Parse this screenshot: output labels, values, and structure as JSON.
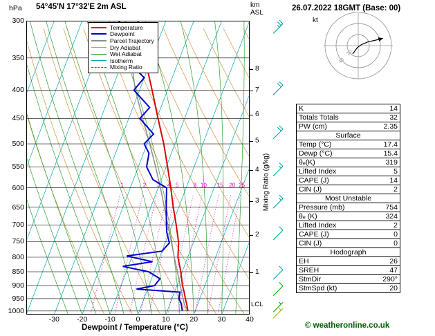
{
  "header": {
    "station_title": "54°45'N 17°32'E 2m ASL",
    "pressure_unit": "hPa",
    "altitude_unit_line1": "km",
    "altitude_unit_line2": "ASL",
    "date_title": "26.07.2022 18GMT (Base: 00)"
  },
  "legend": {
    "items": [
      {
        "label": "Temperature",
        "color": "#dd0000",
        "style": "solid",
        "weight": 2
      },
      {
        "label": "Dewpoint",
        "color": "#0000cc",
        "style": "solid",
        "weight": 2
      },
      {
        "label": "Parcel Trajectory",
        "color": "#8c8c8c",
        "style": "solid",
        "weight": 2
      },
      {
        "label": "Dry Adiabat",
        "color": "#cf9440",
        "style": "solid",
        "weight": 1
      },
      {
        "label": "Wet Adiabat",
        "color": "#2fa02f",
        "style": "solid",
        "weight": 1
      },
      {
        "label": "Isotherm",
        "color": "#00a8a8",
        "style": "solid",
        "weight": 1
      },
      {
        "label": "Mixing Ratio",
        "color": "#cc00cc",
        "style": "dashed",
        "weight": 1
      }
    ]
  },
  "axes": {
    "pressure_ticks": [
      300,
      350,
      400,
      450,
      500,
      550,
      600,
      650,
      700,
      750,
      800,
      850,
      900,
      950,
      1000
    ],
    "temp_ticks": [
      -30,
      -20,
      -10,
      0,
      10,
      20,
      30,
      40
    ],
    "km_ticks": [
      {
        "km": 8,
        "p": 367
      },
      {
        "km": 7,
        "p": 401
      },
      {
        "km": 6,
        "p": 443
      },
      {
        "km": 5,
        "p": 494
      },
      {
        "km": 4,
        "p": 557
      },
      {
        "km": 3,
        "p": 634
      },
      {
        "km": 2,
        "p": 730
      },
      {
        "km": 1,
        "p": 852
      }
    ],
    "lcl_label": "LCL",
    "lcl_pressure": 973,
    "xlabel": "Dewpoint / Temperature (°C)",
    "right_axis_label": "Mixing Ratio (g/kg)"
  },
  "chart_data": {
    "type": "line",
    "subtype": "skew-t-log-p-sounding",
    "title": "54°45'N 17°32'E 2m ASL",
    "xlabel": "Dewpoint / Temperature (°C)",
    "ylabel": "hPa",
    "colors": {
      "temperature": "#dd0000",
      "dewpoint": "#0000cc",
      "parcel": "#8c8c8c",
      "dry_adiabat": "#cf9440",
      "wet_adiabat": "#2fa02f",
      "isotherm": "#00a8a8",
      "mixing_ratio": "#cc00cc",
      "isobar": "#000000"
    },
    "skewt": {
      "pressure_top": 300,
      "pressure_bottom": 1015,
      "temp_min_c": -40,
      "temp_max_c": 40,
      "isotherm_step_c": 10,
      "dry_adiabat_step_k": 10,
      "wet_adiabat_step_c": 5,
      "mixing_ratio_values": [
        1,
        2,
        3,
        4,
        5,
        8,
        10,
        15,
        20,
        25
      ],
      "series": [
        {
          "id": "temperature",
          "name": "Temperature",
          "color": "#dd0000",
          "width": 2,
          "dash": null,
          "points": [
            [
              1000,
              17.4
            ],
            [
              975,
              16.2
            ],
            [
              950,
              14.8
            ],
            [
              925,
              13.5
            ],
            [
              900,
              12
            ],
            [
              850,
              9.5
            ],
            [
              800,
              6.5
            ],
            [
              754,
              4.8
            ],
            [
              700,
              1.5
            ],
            [
              650,
              -2
            ],
            [
              600,
              -5.5
            ],
            [
              550,
              -9.5
            ],
            [
              500,
              -14
            ],
            [
              450,
              -19.5
            ],
            [
              400,
              -25.5
            ],
            [
              350,
              -32.5
            ],
            [
              300,
              -40
            ]
          ]
        },
        {
          "id": "dewpoint",
          "name": "Dewpoint",
          "color": "#0000cc",
          "width": 2,
          "dash": null,
          "points": [
            [
              1000,
              15.4
            ],
            [
              970,
              14
            ],
            [
              950,
              12.5
            ],
            [
              925,
              12
            ],
            [
              913,
              -4
            ],
            [
              900,
              2
            ],
            [
              875,
              3
            ],
            [
              850,
              -2
            ],
            [
              831,
              -12
            ],
            [
              815,
              -2
            ],
            [
              796,
              -12
            ],
            [
              780,
              0
            ],
            [
              754,
              1.5
            ],
            [
              720,
              -1
            ],
            [
              700,
              -2
            ],
            [
              650,
              -4.5
            ],
            [
              600,
              -7
            ],
            [
              580,
              -13
            ],
            [
              550,
              -17
            ],
            [
              520,
              -18
            ],
            [
              500,
              -21
            ],
            [
              480,
              -19
            ],
            [
              450,
              -26
            ],
            [
              430,
              -24
            ],
            [
              400,
              -32
            ],
            [
              380,
              -30
            ],
            [
              350,
              -40
            ],
            [
              330,
              -37
            ],
            [
              300,
              -47
            ]
          ]
        },
        {
          "id": "parcel-trajectory",
          "name": "Parcel Trajectory",
          "color": "#8c8c8c",
          "width": 1.5,
          "dash": null,
          "points": [
            [
              1000,
              17.4
            ],
            [
              973,
              15.2
            ],
            [
              950,
              14
            ],
            [
              900,
              11.2
            ],
            [
              850,
              8.3
            ],
            [
              800,
              5.2
            ],
            [
              750,
              2
            ],
            [
              700,
              -1.5
            ],
            [
              650,
              -5.2
            ],
            [
              600,
              -9.2
            ],
            [
              550,
              -13.8
            ],
            [
              500,
              -19
            ],
            [
              450,
              -25
            ],
            [
              400,
              -31.5
            ],
            [
              350,
              -37.5
            ],
            [
              300,
              -44.5
            ]
          ]
        }
      ],
      "wind_barbs": [
        {
          "p": 310,
          "speed_kt": 25,
          "color": "#00a8a8"
        },
        {
          "p": 400,
          "speed_kt": 20,
          "color": "#00a8a8"
        },
        {
          "p": 480,
          "speed_kt": 20,
          "color": "#00a8a8"
        },
        {
          "p": 560,
          "speed_kt": 15,
          "color": "#00a8a8"
        },
        {
          "p": 640,
          "speed_kt": 15,
          "color": "#00a8a8"
        },
        {
          "p": 730,
          "speed_kt": 10,
          "color": "#00a8a8"
        },
        {
          "p": 860,
          "speed_kt": 10,
          "color": "#00a8a8"
        },
        {
          "p": 920,
          "speed_kt": 10,
          "color": "#00aa00"
        },
        {
          "p": 985,
          "speed_kt": 5,
          "color": "#00aa00"
        },
        {
          "p": 1010,
          "speed_kt": 5,
          "color": "#b0b000"
        }
      ]
    },
    "hodograph": {
      "unit_label": "kt",
      "rings_kt": [
        20,
        40,
        60
      ],
      "ring_labels": [
        20,
        40
      ],
      "trace_uv_kt": [
        [
          -10,
          -15
        ],
        [
          -2,
          -4
        ],
        [
          6,
          2
        ],
        [
          18,
          7
        ],
        [
          32,
          10
        ],
        [
          44,
          13
        ]
      ],
      "storm_dir_deg": 290,
      "storm_spd_kt": 20
    }
  },
  "table": {
    "sections": [
      {
        "header": null,
        "rows": [
          [
            "K",
            "14"
          ],
          [
            "Totals Totals",
            "32"
          ],
          [
            "PW (cm)",
            "2.35"
          ]
        ]
      },
      {
        "header": "Surface",
        "rows": [
          [
            "Temp (°C)",
            "17.4"
          ],
          [
            "Dewp (°C)",
            "15.4"
          ],
          [
            "θₑ(K)",
            "319"
          ],
          [
            "Lifted Index",
            "5"
          ],
          [
            "CAPE (J)",
            "14"
          ],
          [
            "CIN (J)",
            "2"
          ]
        ]
      },
      {
        "header": "Most Unstable",
        "rows": [
          [
            "Pressure (mb)",
            "754"
          ],
          [
            "θₑ (K)",
            "324"
          ],
          [
            "Lifted Index",
            "2"
          ],
          [
            "CAPE (J)",
            "0"
          ],
          [
            "CIN (J)",
            "0"
          ]
        ]
      },
      {
        "header": "Hodograph",
        "rows": [
          [
            "EH",
            "26"
          ],
          [
            "SREH",
            "47"
          ],
          [
            "StmDir",
            "290°"
          ],
          [
            "StmSpd (kt)",
            "20"
          ]
        ]
      }
    ]
  },
  "footer": {
    "copyright": "© weatheronline.co.uk"
  }
}
